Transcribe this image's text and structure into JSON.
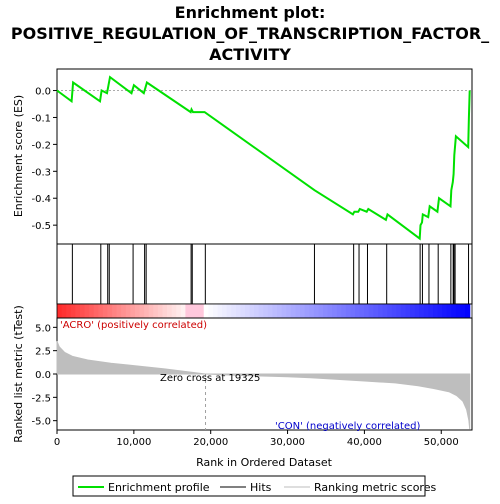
{
  "title_lines": [
    "Enrichment plot:",
    "POSITIVE_REGULATION_OF_TRANSCRIPTION_FACTOR_",
    "ACTIVITY"
  ],
  "colors": {
    "background": "#ffffff",
    "enrichment_line": "#00e000",
    "hits": "#000000",
    "metric_fill": "#bebebe",
    "pos_band": "#ff0000",
    "neg_band": "#0000ff",
    "zero_marker": "#a0a0a0"
  },
  "chart_data": [
    {
      "type": "line",
      "panel": "enrichment",
      "ylabel": "Enrichment score (ES)",
      "ylim": [
        -0.57,
        0.08
      ],
      "yticks": [
        0.0,
        -0.1,
        -0.2,
        -0.3,
        -0.4,
        -0.5
      ],
      "ytick_labels": [
        "0.0",
        "-0.1",
        "-0.2",
        "-0.3",
        "-0.4",
        "-0.5"
      ],
      "xlim": [
        0,
        54000
      ],
      "series": [
        {
          "name": "Enrichment profile",
          "x": [
            0,
            1900,
            2100,
            5600,
            5800,
            6500,
            6700,
            6900,
            9700,
            10000,
            11300,
            11500,
            11700,
            17400,
            17500,
            17700,
            19200,
            33500,
            38500,
            38700,
            39200,
            39400,
            40300,
            40500,
            42800,
            43000,
            47200,
            47300,
            47500,
            47600,
            48300,
            48500,
            49500,
            49700,
            51200,
            51300,
            51500,
            51600,
            51700,
            51900,
            53500,
            53600,
            53700
          ],
          "y": [
            0.0,
            -0.04,
            0.03,
            -0.04,
            0.0,
            -0.01,
            0.02,
            0.05,
            -0.01,
            0.02,
            -0.01,
            0.01,
            0.03,
            -0.08,
            -0.07,
            -0.08,
            -0.08,
            -0.37,
            -0.46,
            -0.45,
            -0.45,
            -0.44,
            -0.45,
            -0.44,
            -0.48,
            -0.46,
            -0.55,
            -0.5,
            -0.49,
            -0.46,
            -0.47,
            -0.43,
            -0.45,
            -0.4,
            -0.43,
            -0.37,
            -0.34,
            -0.31,
            -0.24,
            -0.17,
            -0.21,
            -0.1,
            0.0
          ]
        }
      ]
    },
    {
      "type": "scatter",
      "panel": "hits",
      "series": [
        {
          "name": "Hits",
          "x": [
            2000,
            5700,
            6600,
            6800,
            9900,
            11400,
            11600,
            17450,
            17600,
            19300,
            33500,
            38600,
            39300,
            40400,
            42900,
            47250,
            47550,
            48400,
            49600,
            51250,
            51550,
            51650,
            51800,
            53550
          ]
        }
      ]
    },
    {
      "type": "area",
      "panel": "ranked_metric",
      "xlabel": "Rank in Ordered Dataset",
      "ylabel": "Ranked list metric (tTest)",
      "ylim": [
        -6.0,
        6.0
      ],
      "yticks": [
        5.0,
        2.5,
        0.0,
        -2.5,
        -5.0
      ],
      "ytick_labels": [
        "5.0",
        "2.5",
        "0.0",
        "-2.5",
        "-5.0"
      ],
      "xlim": [
        0,
        54000
      ],
      "xticks": [
        0,
        10000,
        20000,
        30000,
        40000,
        50000
      ],
      "xtick_labels": [
        "0",
        "10,000",
        "20,000",
        "30,000",
        "40,000",
        "50,000"
      ],
      "series": [
        {
          "name": "Ranking metric scores",
          "x": [
            0,
            300,
            1000,
            2000,
            4000,
            7000,
            10000,
            14000,
            17000,
            19325,
            22000,
            26000,
            30000,
            33000,
            36000,
            40000,
            44000,
            47000,
            49000,
            51000,
            52000,
            52800,
            53300,
            53600,
            53700
          ],
          "y": [
            3.5,
            2.9,
            2.3,
            1.9,
            1.5,
            1.15,
            0.9,
            0.55,
            0.25,
            0.0,
            -0.1,
            -0.2,
            -0.3,
            -0.4,
            -0.55,
            -0.75,
            -0.95,
            -1.25,
            -1.55,
            -1.9,
            -2.3,
            -2.9,
            -3.8,
            -5.0,
            -5.9
          ]
        }
      ],
      "annotations": [
        "'ACRO' (positively correlated)",
        "Zero cross at 19325",
        "'CON' (negatively correlated)"
      ]
    }
  ],
  "legend": {
    "items": [
      {
        "label": "Enrichment profile",
        "color": "#00e000"
      },
      {
        "label": "Hits",
        "color": "#000000"
      },
      {
        "label": "Ranking metric scores",
        "color": "#bebebe"
      }
    ]
  }
}
